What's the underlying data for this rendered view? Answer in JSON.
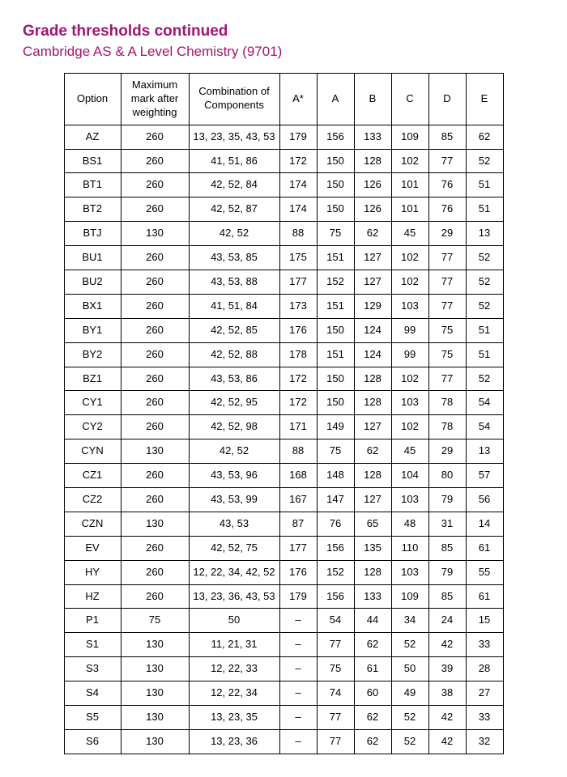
{
  "colors": {
    "title": "#a3156f",
    "subtitle": "#a3156f",
    "text": "#000000",
    "border": "#000000",
    "background": "#ffffff"
  },
  "title": "Grade thresholds continued",
  "subtitle": "Cambridge AS & A Level Chemistry (9701)",
  "columns": [
    "Option",
    "Maximum mark after weighting",
    "Combination of Components",
    "A*",
    "A",
    "B",
    "C",
    "D",
    "E"
  ],
  "rows": [
    [
      "AZ",
      "260",
      "13, 23, 35, 43, 53",
      "179",
      "156",
      "133",
      "109",
      "85",
      "62"
    ],
    [
      "BS1",
      "260",
      "41, 51, 86",
      "172",
      "150",
      "128",
      "102",
      "77",
      "52"
    ],
    [
      "BT1",
      "260",
      "42, 52, 84",
      "174",
      "150",
      "126",
      "101",
      "76",
      "51"
    ],
    [
      "BT2",
      "260",
      "42, 52, 87",
      "174",
      "150",
      "126",
      "101",
      "76",
      "51"
    ],
    [
      "BTJ",
      "130",
      "42, 52",
      "88",
      "75",
      "62",
      "45",
      "29",
      "13"
    ],
    [
      "BU1",
      "260",
      "43, 53, 85",
      "175",
      "151",
      "127",
      "102",
      "77",
      "52"
    ],
    [
      "BU2",
      "260",
      "43, 53, 88",
      "177",
      "152",
      "127",
      "102",
      "77",
      "52"
    ],
    [
      "BX1",
      "260",
      "41, 51, 84",
      "173",
      "151",
      "129",
      "103",
      "77",
      "52"
    ],
    [
      "BY1",
      "260",
      "42, 52, 85",
      "176",
      "150",
      "124",
      "99",
      "75",
      "51"
    ],
    [
      "BY2",
      "260",
      "42, 52, 88",
      "178",
      "151",
      "124",
      "99",
      "75",
      "51"
    ],
    [
      "BZ1",
      "260",
      "43, 53, 86",
      "172",
      "150",
      "128",
      "102",
      "77",
      "52"
    ],
    [
      "CY1",
      "260",
      "42, 52, 95",
      "172",
      "150",
      "128",
      "103",
      "78",
      "54"
    ],
    [
      "CY2",
      "260",
      "42, 52, 98",
      "171",
      "149",
      "127",
      "102",
      "78",
      "54"
    ],
    [
      "CYN",
      "130",
      "42, 52",
      "88",
      "75",
      "62",
      "45",
      "29",
      "13"
    ],
    [
      "CZ1",
      "260",
      "43, 53, 96",
      "168",
      "148",
      "128",
      "104",
      "80",
      "57"
    ],
    [
      "CZ2",
      "260",
      "43, 53, 99",
      "167",
      "147",
      "127",
      "103",
      "79",
      "56"
    ],
    [
      "CZN",
      "130",
      "43, 53",
      "87",
      "76",
      "65",
      "48",
      "31",
      "14"
    ],
    [
      "EV",
      "260",
      "42, 52, 75",
      "177",
      "156",
      "135",
      "110",
      "85",
      "61"
    ],
    [
      "HY",
      "260",
      "12, 22, 34, 42, 52",
      "176",
      "152",
      "128",
      "103",
      "79",
      "55"
    ],
    [
      "HZ",
      "260",
      "13, 23, 36, 43, 53",
      "179",
      "156",
      "133",
      "109",
      "85",
      "61"
    ],
    [
      "P1",
      "75",
      "50",
      "–",
      "54",
      "44",
      "34",
      "24",
      "15"
    ],
    [
      "S1",
      "130",
      "11, 21, 31",
      "–",
      "77",
      "62",
      "52",
      "42",
      "33"
    ],
    [
      "S3",
      "130",
      "12, 22, 33",
      "–",
      "75",
      "61",
      "50",
      "39",
      "28"
    ],
    [
      "S4",
      "130",
      "12, 22, 34",
      "–",
      "74",
      "60",
      "49",
      "38",
      "27"
    ],
    [
      "S5",
      "130",
      "13, 23, 35",
      "–",
      "77",
      "62",
      "52",
      "42",
      "33"
    ],
    [
      "S6",
      "130",
      "13, 23, 36",
      "–",
      "77",
      "62",
      "52",
      "42",
      "32"
    ]
  ]
}
